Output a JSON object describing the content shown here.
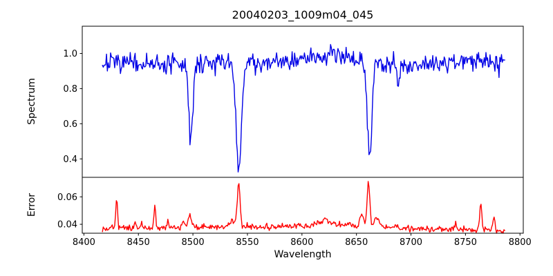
{
  "chart_data": {
    "type": "line",
    "title": "20040203_1009m04_045",
    "xlabel": "Wavelength",
    "grid": false,
    "legend": "none",
    "xlim": [
      8398.5,
      8803
    ],
    "x_ticks": [
      8400,
      8450,
      8500,
      8550,
      8600,
      8650,
      8700,
      8750,
      8800
    ],
    "panels": [
      {
        "name": "spectrum",
        "ylabel": "Spectrum",
        "color": "#0000e6",
        "ylim": [
          0.295,
          1.155
        ],
        "y_ticks": [
          0.4,
          0.6,
          0.8,
          1.0
        ],
        "tick_decimals": 1,
        "x_start": 8417,
        "x_end": 8786,
        "n_points": 493,
        "noise_sigma": 0.027,
        "noise_seed": 7,
        "continuum": [
          [
            8417,
            0.945
          ],
          [
            8455,
            0.938
          ],
          [
            8475,
            0.935
          ],
          [
            8510,
            0.945
          ],
          [
            8545,
            0.948
          ],
          [
            8575,
            0.955
          ],
          [
            8600,
            0.968
          ],
          [
            8625,
            1.0
          ],
          [
            8640,
            0.993
          ],
          [
            8658,
            0.955
          ],
          [
            8680,
            0.932
          ],
          [
            8705,
            0.94
          ],
          [
            8735,
            0.95
          ],
          [
            8765,
            0.958
          ],
          [
            8786,
            0.955
          ]
        ],
        "absorption_lines": [
          {
            "center": 8498,
            "depth": 0.44,
            "sigma": 1.9
          },
          {
            "center": 8542,
            "depth": 0.63,
            "sigma": 2.4
          },
          {
            "center": 8662,
            "depth": 0.545,
            "sigma": 2.1
          },
          {
            "center": 8688,
            "depth": 0.1,
            "sigma": 1.3
          }
        ],
        "spikes": []
      },
      {
        "name": "error",
        "ylabel": "Error",
        "color": "#ff0000",
        "ylim": [
          0.0335,
          0.0742
        ],
        "y_ticks": [
          0.04,
          0.06
        ],
        "tick_decimals": 2,
        "x_start": 8417,
        "x_end": 8786,
        "n_points": 493,
        "noise_sigma": 0.0011,
        "noise_seed": 13,
        "continuum": [
          [
            8417,
            0.0376
          ],
          [
            8455,
            0.0372
          ],
          [
            8495,
            0.0378
          ],
          [
            8540,
            0.0384
          ],
          [
            8575,
            0.0382
          ],
          [
            8605,
            0.0392
          ],
          [
            8628,
            0.0398
          ],
          [
            8652,
            0.039
          ],
          [
            8672,
            0.0384
          ],
          [
            8695,
            0.0373
          ],
          [
            8722,
            0.0366
          ],
          [
            8748,
            0.0362
          ],
          [
            8765,
            0.0366
          ],
          [
            8777,
            0.0355
          ],
          [
            8782,
            0.0342
          ],
          [
            8786,
            0.0348
          ]
        ],
        "absorption_lines": [],
        "spikes": [
          {
            "center": 8430,
            "amplitude": 0.021,
            "sigma": 0.8
          },
          {
            "center": 8447,
            "amplitude": 0.004,
            "sigma": 0.7
          },
          {
            "center": 8453,
            "amplitude": 0.005,
            "sigma": 0.7
          },
          {
            "center": 8465,
            "amplitude": 0.0165,
            "sigma": 0.7
          },
          {
            "center": 8477,
            "amplitude": 0.005,
            "sigma": 1.0
          },
          {
            "center": 8491,
            "amplitude": 0.004,
            "sigma": 1.2
          },
          {
            "center": 8497,
            "amplitude": 0.0085,
            "sigma": 1.4
          },
          {
            "center": 8537,
            "amplitude": 0.005,
            "sigma": 2.2
          },
          {
            "center": 8542,
            "amplitude": 0.0305,
            "sigma": 1.3
          },
          {
            "center": 8620,
            "amplitude": 0.0035,
            "sigma": 5
          },
          {
            "center": 8655,
            "amplitude": 0.007,
            "sigma": 2
          },
          {
            "center": 8661,
            "amplitude": 0.0315,
            "sigma": 1.2
          },
          {
            "center": 8669,
            "amplitude": 0.006,
            "sigma": 2
          },
          {
            "center": 8741,
            "amplitude": 0.004,
            "sigma": 0.9
          },
          {
            "center": 8764,
            "amplitude": 0.019,
            "sigma": 0.9
          },
          {
            "center": 8776,
            "amplitude": 0.0105,
            "sigma": 0.9
          }
        ]
      }
    ],
    "frame_color": "#000000",
    "background_color": "#ffffff"
  }
}
